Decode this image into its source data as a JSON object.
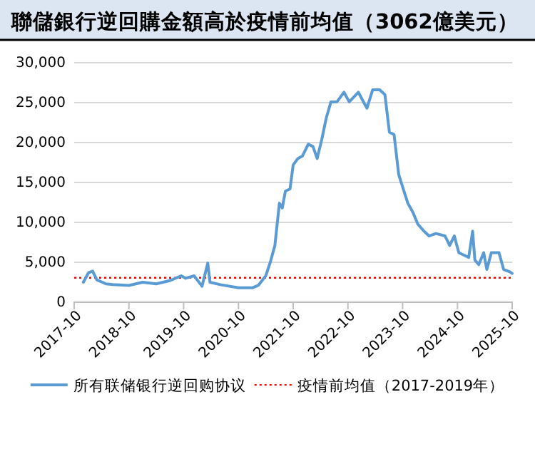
{
  "chart_data": {
    "type": "line",
    "title": "聯儲銀行逆回購金額高於疫情前均值（3062億美元）",
    "x": [
      "2017-12-01",
      "2018-01-05",
      "2018-02-01",
      "2018-03-01",
      "2018-05-01",
      "2018-06-15",
      "2018-10-01",
      "2019-01-01",
      "2019-04-01",
      "2019-07-01",
      "2019-09-15",
      "2019-10-15",
      "2019-12-10",
      "2020-02-01",
      "2020-03-10",
      "2020-03-25",
      "2020-06-01",
      "2020-10-01",
      "2021-01-01",
      "2021-02-10",
      "2021-04-01",
      "2021-05-01",
      "2021-06-01",
      "2021-07-01",
      "2021-07-20",
      "2021-08-10",
      "2021-09-10",
      "2021-10-01",
      "2021-11-01",
      "2021-12-01",
      "2022-01-10",
      "2022-02-10",
      "2022-03-10",
      "2022-04-10",
      "2022-05-10",
      "2022-06-10",
      "2022-07-20",
      "2022-09-05",
      "2022-10-10",
      "2022-12-10",
      "2023-02-05",
      "2023-03-15",
      "2023-05-01",
      "2023-06-05",
      "2023-07-05",
      "2023-08-05",
      "2023-09-05",
      "2023-10-05",
      "2023-11-05",
      "2023-12-10",
      "2024-01-10",
      "2024-02-20",
      "2024-03-25",
      "2024-05-10",
      "2024-07-10",
      "2024-08-10",
      "2024-09-10",
      "2024-10-10",
      "2024-12-15",
      "2025-01-10",
      "2025-01-25",
      "2025-02-20",
      "2025-03-25",
      "2025-04-15",
      "2025-05-15",
      "2025-07-05",
      "2025-08-05",
      "2025-09-15",
      "2025-10-01"
    ],
    "series": [
      {
        "name": "所有联储银行逆回购协议",
        "color": "#5b9bd5",
        "values": [
          2500,
          3700,
          3900,
          2800,
          2300,
          2200,
          2100,
          2500,
          2300,
          2700,
          3300,
          3000,
          3300,
          2000,
          4900,
          2500,
          2200,
          1800,
          1800,
          2100,
          3300,
          5000,
          7100,
          12400,
          11800,
          13900,
          14200,
          17200,
          18000,
          18300,
          19800,
          19500,
          18000,
          20400,
          23100,
          25100,
          25100,
          26300,
          25100,
          26300,
          24300,
          26600,
          26600,
          26000,
          21300,
          21000,
          16000,
          14200,
          12400,
          11200,
          9800,
          8900,
          8300,
          8600,
          8300,
          7100,
          8300,
          6200,
          5600,
          8900,
          5300,
          4700,
          6200,
          4100,
          6200,
          6200,
          4100,
          3800,
          3600
        ]
      }
    ],
    "ref_lines": [
      {
        "axis": "y",
        "value": 3062,
        "label": "疫情前均值（2017-2019年）",
        "color": "#ff0000",
        "line_style": "dotted"
      }
    ],
    "xlim": [
      "2017-10",
      "2025-10"
    ],
    "xticks": [
      "2017-10",
      "2018-10",
      "2019-10",
      "2020-10",
      "2021-10",
      "2022-10",
      "2023-10",
      "2024-10",
      "2025-10"
    ],
    "ylim": [
      0,
      30000
    ],
    "yticks": [
      {
        "value": 0,
        "label": "0"
      },
      {
        "value": 5000,
        "label": "5,000"
      },
      {
        "value": 10000,
        "label": "10,000"
      },
      {
        "value": 15000,
        "label": "15,000"
      },
      {
        "value": 20000,
        "label": "20,000"
      },
      {
        "value": 25000,
        "label": "25,000"
      },
      {
        "value": 30000,
        "label": "30,000"
      }
    ],
    "grid": "y",
    "legend": "bottom",
    "marker": "none",
    "line_style": "solid"
  }
}
